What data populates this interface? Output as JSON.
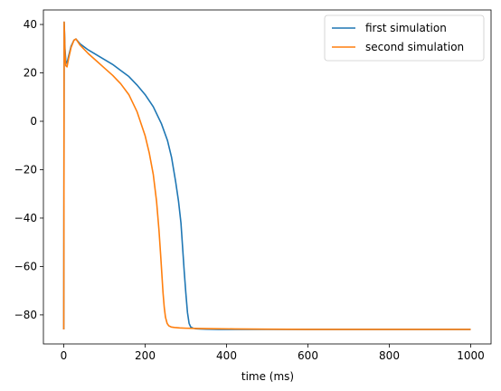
{
  "chart_data": {
    "type": "line",
    "title": "",
    "xlabel": "time (ms)",
    "ylabel": "",
    "xlim": [
      -50,
      1050
    ],
    "ylim": [
      -92,
      46
    ],
    "x_ticks": [
      0,
      200,
      400,
      600,
      800,
      1000
    ],
    "y_ticks": [
      40,
      20,
      0,
      -20,
      -40,
      -60,
      -80
    ],
    "x_tick_labels": [
      "0",
      "200",
      "400",
      "600",
      "800",
      "1000"
    ],
    "y_tick_labels": [
      "40",
      "20",
      "0",
      "−20",
      "−40",
      "−60",
      "−80"
    ],
    "grid": false,
    "legend_position": "top-right",
    "series": [
      {
        "name": "first simulation",
        "color": "#1f77b4",
        "x": [
          0,
          1,
          2,
          3,
          5,
          8,
          12,
          18,
          25,
          30,
          40,
          60,
          80,
          100,
          120,
          140,
          160,
          180,
          200,
          220,
          240,
          255,
          265,
          275,
          282,
          288,
          292,
          296,
          300,
          304,
          308,
          312,
          318,
          325,
          335,
          350,
          380,
          420,
          500,
          600,
          700,
          800,
          900,
          1000
        ],
        "y": [
          -86,
          41,
          36,
          30,
          25,
          24,
          27,
          31,
          33.5,
          34,
          32,
          29.5,
          27.5,
          25.5,
          23.5,
          21,
          18.5,
          15,
          11,
          6,
          -1,
          -8,
          -15,
          -25,
          -33,
          -42,
          -52,
          -62,
          -71,
          -79,
          -83.5,
          -85,
          -85.5,
          -85.7,
          -85.8,
          -85.9,
          -86,
          -86,
          -86,
          -86,
          -86,
          -86,
          -86,
          -86
        ]
      },
      {
        "name": "second simulation",
        "color": "#ff7f0e",
        "x": [
          0,
          1,
          2,
          3,
          5,
          8,
          12,
          18,
          25,
          30,
          40,
          60,
          80,
          100,
          120,
          140,
          160,
          180,
          200,
          210,
          220,
          228,
          234,
          238,
          241,
          244,
          247,
          250,
          254,
          258,
          264,
          272,
          285,
          300,
          330,
          370,
          420,
          500,
          600,
          700,
          800,
          900,
          1000
        ],
        "y": [
          -86,
          41,
          35,
          28,
          23,
          22.5,
          26,
          30.5,
          33.5,
          34,
          31.5,
          28,
          25,
          22,
          19,
          15.5,
          11,
          4,
          -6,
          -13,
          -22,
          -33,
          -45,
          -55,
          -63,
          -71,
          -77,
          -81,
          -83.5,
          -84.5,
          -85,
          -85.2,
          -85.4,
          -85.5,
          -85.6,
          -85.7,
          -85.8,
          -85.9,
          -86,
          -86,
          -86,
          -86,
          -86
        ]
      }
    ]
  }
}
